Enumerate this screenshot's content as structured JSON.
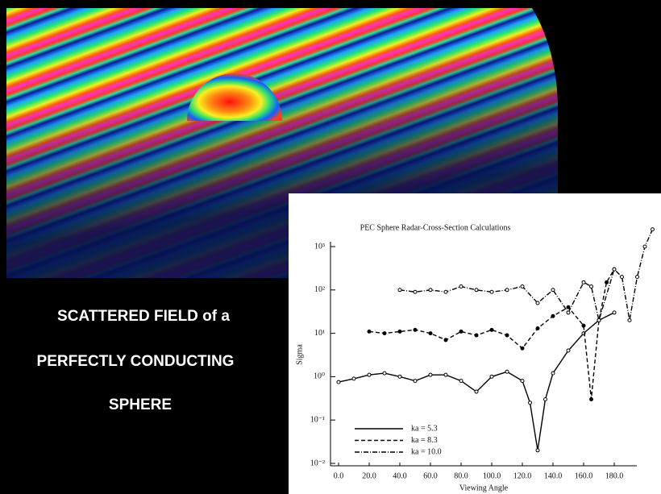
{
  "poster": {
    "lines": [
      "SCATTERED FIELD of a",
      "PERFECTLY CONDUCTING",
      "SPHERE"
    ]
  },
  "chart_data": {
    "type": "line",
    "title": "PEC Sphere Radar-Cross-Section Calculations",
    "x_label": "Viewing Angle",
    "y_label": "Sigma",
    "log_y": true,
    "legend": "lower left",
    "xlim": [
      0,
      210
    ],
    "ylim": [
      0.01,
      1000
    ],
    "xticks": [
      {
        "value": 0,
        "label": "0.0"
      },
      {
        "value": 20,
        "label": "20.0"
      },
      {
        "value": 40,
        "label": "40.0"
      },
      {
        "value": 60,
        "label": "60.0"
      },
      {
        "value": 80,
        "label": "80.0"
      },
      {
        "value": 100,
        "label": "100.0"
      },
      {
        "value": 120,
        "label": "120.0"
      },
      {
        "value": 140,
        "label": "140.0"
      },
      {
        "value": 160,
        "label": "160.0"
      },
      {
        "value": 180,
        "label": "180.0"
      }
    ],
    "yticks": [
      {
        "value": 0.01,
        "label": "10⁻²"
      },
      {
        "value": 0.1,
        "label": "10⁻¹"
      },
      {
        "value": 1,
        "label": "10⁰"
      },
      {
        "value": 10,
        "label": "10¹"
      },
      {
        "value": 100,
        "label": "10²"
      },
      {
        "value": 1000,
        "label": "10³"
      }
    ],
    "series": [
      {
        "name": "ka = 5.3",
        "color": "#000000",
        "style": "solid",
        "x": [
          0,
          10,
          20,
          30,
          40,
          50,
          60,
          70,
          80,
          90,
          100,
          110,
          120,
          125,
          130,
          135,
          140,
          150,
          160,
          170,
          180
        ],
        "values": [
          0.75,
          0.9,
          1.1,
          1.2,
          1.0,
          0.8,
          1.1,
          1.1,
          0.8,
          0.45,
          1.0,
          1.3,
          0.8,
          0.25,
          0.02,
          0.3,
          1.2,
          4,
          10,
          20,
          30
        ]
      },
      {
        "name": "ka = 8.3",
        "color": "#000000",
        "style": "dashed",
        "x": [
          20,
          30,
          40,
          50,
          60,
          70,
          80,
          90,
          100,
          110,
          120,
          130,
          140,
          150,
          160,
          165,
          170,
          175,
          180
        ],
        "values": [
          11,
          10,
          11,
          12,
          10,
          7,
          11,
          9,
          12,
          9,
          4.5,
          13,
          25,
          40,
          15,
          0.3,
          20,
          150,
          300
        ]
      },
      {
        "name": "ka = 10.0",
        "color": "#000000",
        "style": "dashdot",
        "x": [
          40,
          50,
          60,
          70,
          80,
          90,
          100,
          110,
          120,
          130,
          140,
          150,
          160,
          165,
          170,
          180,
          185,
          190,
          195,
          200,
          205
        ],
        "values": [
          100,
          90,
          100,
          90,
          120,
          100,
          90,
          100,
          120,
          50,
          100,
          30,
          150,
          120,
          20,
          300,
          200,
          20,
          200,
          1000,
          2500
        ]
      }
    ]
  }
}
